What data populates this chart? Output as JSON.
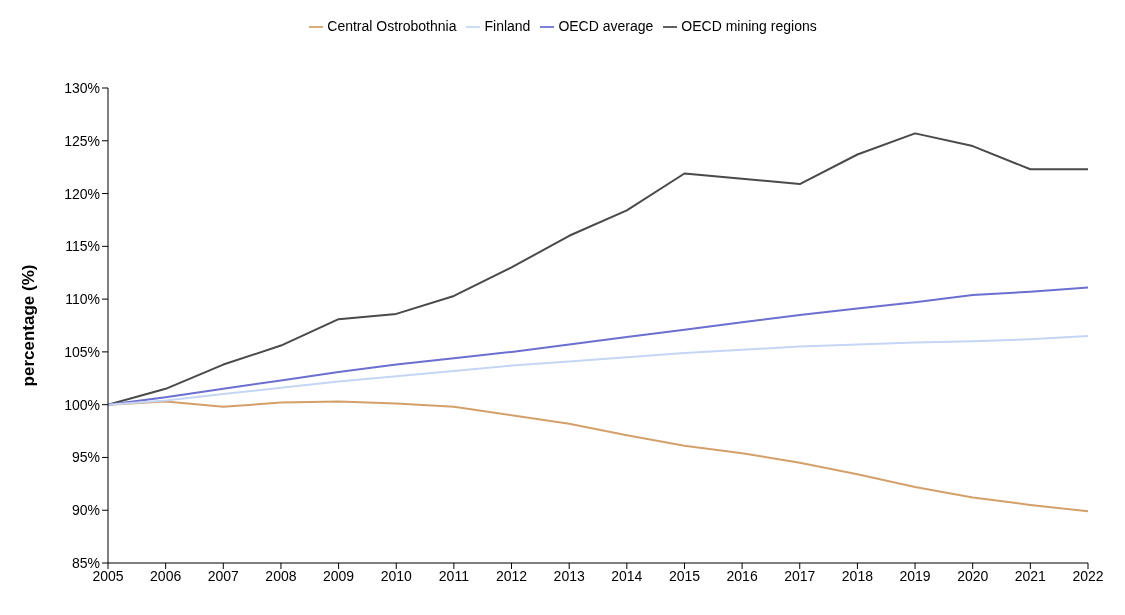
{
  "chart_data": {
    "type": "line",
    "ylabel": "percentage (%)",
    "categories": [
      "2005",
      "2006",
      "2007",
      "2008",
      "2009",
      "2010",
      "2011",
      "2012",
      "2013",
      "2014",
      "2015",
      "2016",
      "2017",
      "2018",
      "2019",
      "2020",
      "2021",
      "2022"
    ],
    "series": [
      {
        "name": "Central Ostrobothnia",
        "color": "#d4a06a",
        "values": [
          100,
          100.3,
          99.8,
          100.2,
          100.3,
          100.1,
          99.8,
          99.0,
          98.2,
          97.1,
          96.1,
          95.4,
          94.5,
          93.4,
          92.2,
          91.2,
          90.5,
          89.9
        ]
      },
      {
        "name": "OECD mining regions",
        "color": "#4a4a4a",
        "values": [
          100,
          101.5,
          103.8,
          105.6,
          108.1,
          108.6,
          110.3,
          113.0,
          116.0,
          118.4,
          121.9,
          121.4,
          120.9,
          123.7,
          125.7,
          124.5,
          122.3,
          122.3
        ]
      },
      {
        "name": "OECD average",
        "color": "#6b6fd0",
        "values": [
          100,
          100.7,
          101.5,
          102.3,
          103.1,
          103.8,
          104.4,
          105.0,
          105.7,
          106.4,
          107.1,
          107.8,
          108.5,
          109.1,
          109.7,
          110.4,
          110.7,
          111.1
        ]
      },
      {
        "name": "Finland",
        "color": "#c5d6f5",
        "values": [
          100,
          100.4,
          101.0,
          101.6,
          102.2,
          102.7,
          103.2,
          103.7,
          104.1,
          104.5,
          104.9,
          105.2,
          105.5,
          105.7,
          105.9,
          106.0,
          106.2,
          106.5
        ]
      }
    ],
    "ylim": [
      85,
      130
    ],
    "yticks": [
      {
        "value": 85,
        "label": "85%"
      },
      {
        "value": 90,
        "label": "90%"
      },
      {
        "value": 95,
        "label": "95%"
      },
      {
        "value": 100,
        "label": "100%"
      },
      {
        "value": 105,
        "label": "105%"
      },
      {
        "value": 110,
        "label": "110%"
      },
      {
        "value": 115,
        "label": "115%"
      },
      {
        "value": 120,
        "label": "120%"
      },
      {
        "value": 125,
        "label": "125%"
      },
      {
        "value": 130,
        "label": "130%"
      }
    ],
    "grid": false,
    "legend": "top",
    "marker": "none",
    "line_style": "solid"
  }
}
